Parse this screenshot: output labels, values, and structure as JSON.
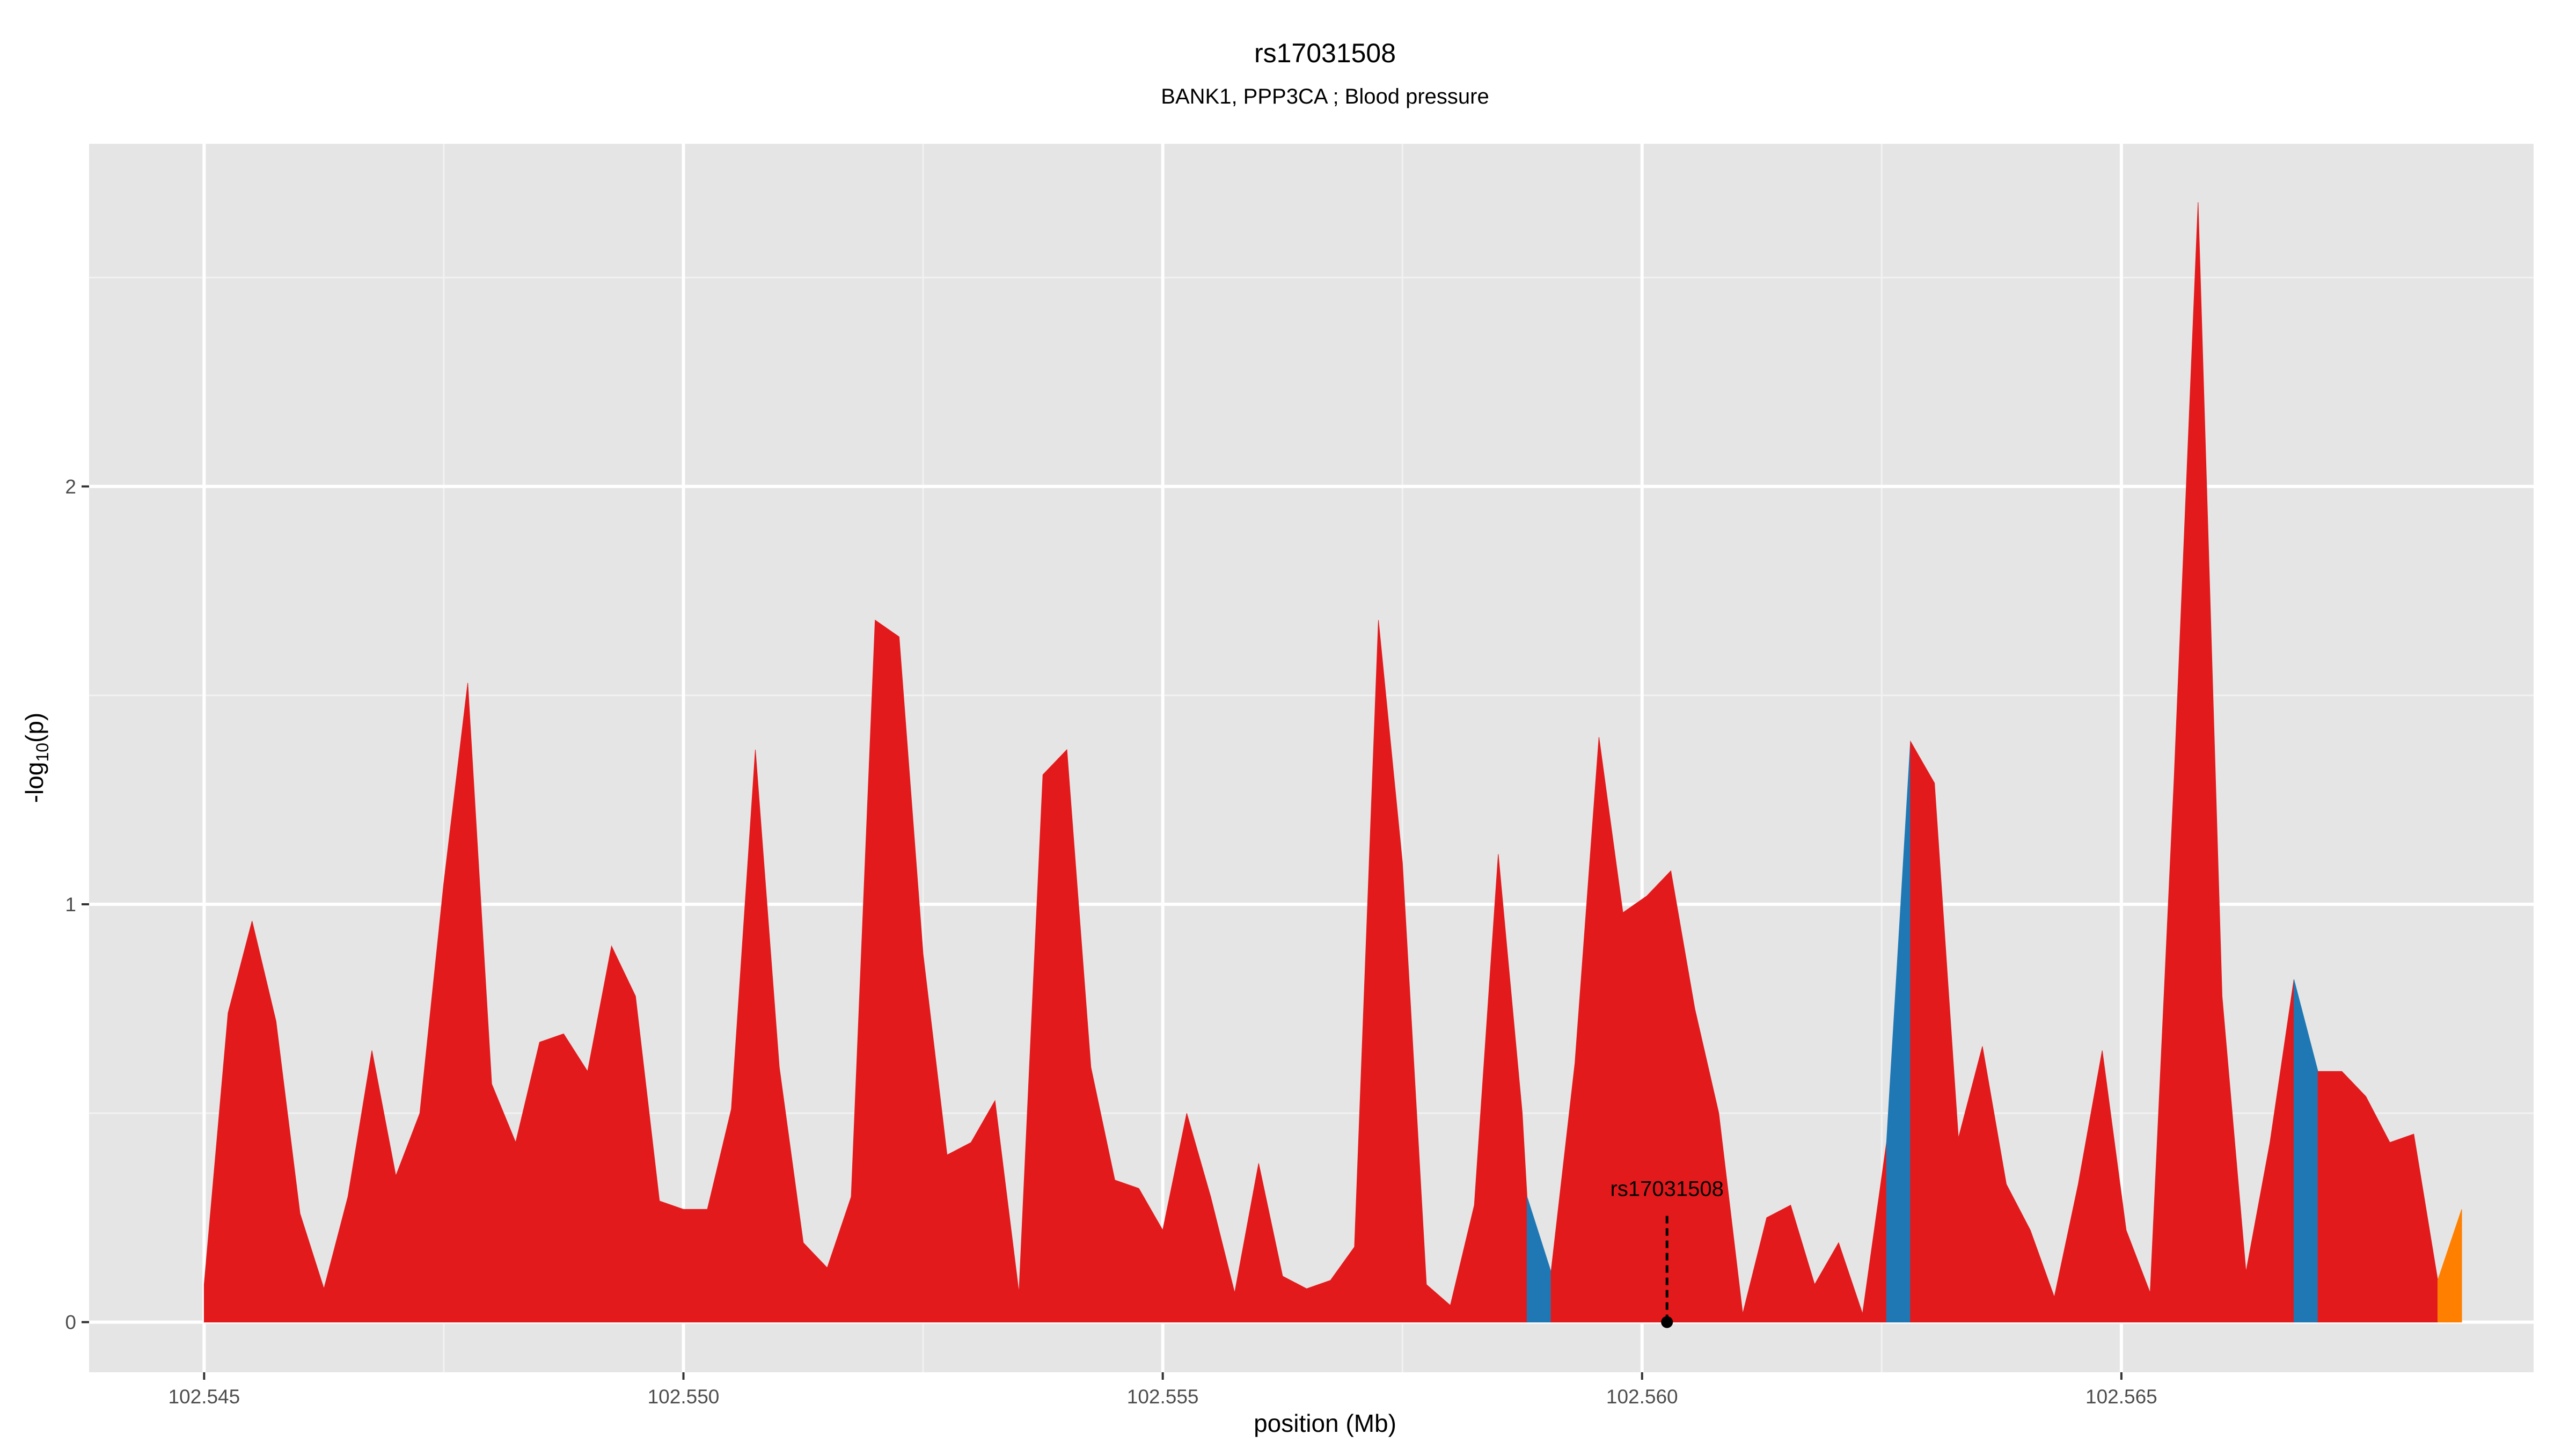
{
  "chart_data": {
    "type": "area",
    "title": "rs17031508",
    "subtitle": "BANK1, PPP3CA ; Blood pressure",
    "xlabel": "position (Mb)",
    "ylabel_main": "-log",
    "ylabel_sub": "10",
    "ylabel_tail": "(p)",
    "xlim": [
      102.5438,
      102.5693
    ],
    "ylim": [
      -0.12,
      2.82
    ],
    "x_ticks": [
      102.545,
      102.55,
      102.555,
      102.56,
      102.565
    ],
    "x_tick_labels": [
      "102.545",
      "102.550",
      "102.555",
      "102.560",
      "102.565"
    ],
    "y_ticks": [
      0,
      1,
      2
    ],
    "y_tick_labels": [
      "0",
      "1",
      "2"
    ],
    "grid": true,
    "legend": "none",
    "colors": {
      "red": "#e31a1c",
      "blue": "#1f78b4",
      "orange": "#ff7f00",
      "panel": "#e5e5e5",
      "grid_major": "#ffffff",
      "grid_minor": "#f2f2f2"
    },
    "series": [
      {
        "color": "red",
        "x": [
          102.545,
          102.54525,
          102.5455,
          102.54575,
          102.546,
          102.54625,
          102.5465,
          102.54675,
          102.547,
          102.54725,
          102.5475,
          102.54775,
          102.548,
          102.54825,
          102.5485,
          102.54875,
          102.549,
          102.54925,
          102.5495,
          102.54975,
          102.55,
          102.55025,
          102.5505,
          102.55075,
          102.551,
          102.55125,
          102.5515,
          102.55175,
          102.552,
          102.55225,
          102.5525,
          102.55275,
          102.553,
          102.55325,
          102.5535,
          102.55375,
          102.554,
          102.55425,
          102.5545,
          102.55475,
          102.555,
          102.55525,
          102.5555,
          102.55575,
          102.556,
          102.55625,
          102.5565,
          102.55675,
          102.557,
          102.55725,
          102.5575,
          102.55775,
          102.558,
          102.55825,
          102.5585,
          102.55875,
          102.5588
        ],
        "y": [
          0.09,
          0.74,
          0.96,
          0.72,
          0.26,
          0.08,
          0.3,
          0.65,
          0.35,
          0.5,
          1.05,
          1.53,
          0.57,
          0.43,
          0.67,
          0.69,
          0.6,
          0.9,
          0.78,
          0.29,
          0.27,
          0.27,
          0.51,
          1.37,
          0.61,
          0.19,
          0.13,
          0.3,
          1.68,
          1.64,
          0.88,
          0.4,
          0.43,
          0.53,
          0.07,
          1.31,
          1.37,
          0.61,
          0.34,
          0.32,
          0.22,
          0.5,
          0.3,
          0.07,
          0.38,
          0.11,
          0.08,
          0.1,
          0.18,
          1.68,
          1.1,
          0.09,
          0.04,
          0.28,
          1.12,
          0.5,
          0.3
        ]
      },
      {
        "color": "blue",
        "x": [
          102.5588,
          102.55905
        ],
        "y": [
          0.3,
          0.12
        ]
      },
      {
        "color": "red",
        "x": [
          102.55905,
          102.5593,
          102.55955,
          102.5598,
          102.56005,
          102.5603,
          102.56055,
          102.5608,
          102.56105,
          102.5613,
          102.56155,
          102.5618,
          102.56205,
          102.5623,
          102.56255
        ],
        "y": [
          0.12,
          0.62,
          1.4,
          0.98,
          1.02,
          1.08,
          0.75,
          0.5,
          0.02,
          0.25,
          0.28,
          0.09,
          0.19,
          0.02,
          0.43
        ]
      },
      {
        "color": "blue",
        "x": [
          102.56255,
          102.5628
        ],
        "y": [
          0.43,
          1.39
        ]
      },
      {
        "color": "red",
        "x": [
          102.5628,
          102.56305,
          102.5633,
          102.56355,
          102.5638,
          102.56405,
          102.5643,
          102.56455,
          102.5648,
          102.56505,
          102.5653,
          102.56555,
          102.5658,
          102.56605,
          102.5663,
          102.56655,
          102.5668
        ],
        "y": [
          1.39,
          1.29,
          0.44,
          0.66,
          0.33,
          0.22,
          0.06,
          0.33,
          0.65,
          0.22,
          0.07,
          1.3,
          2.68,
          0.78,
          0.12,
          0.43,
          0.82
        ]
      },
      {
        "color": "blue",
        "x": [
          102.5668,
          102.56705
        ],
        "y": [
          0.82,
          0.6
        ]
      },
      {
        "color": "red",
        "x": [
          102.56705,
          102.5673,
          102.56755,
          102.5678,
          102.56805,
          102.5683
        ],
        "y": [
          0.6,
          0.6,
          0.54,
          0.43,
          0.45,
          0.1
        ]
      },
      {
        "color": "orange",
        "x": [
          102.5683,
          102.56855
        ],
        "y": [
          0.1,
          0.27
        ]
      }
    ],
    "annotations": [
      {
        "text": "rs17031508",
        "x": 102.56026,
        "y": 0
      }
    ]
  }
}
